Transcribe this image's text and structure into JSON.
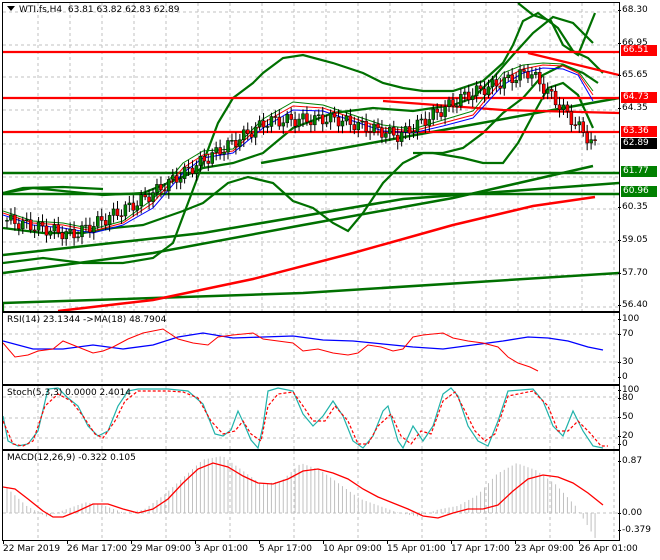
{
  "header": {
    "symbol": "WTI.fs,H4",
    "ohlc": "63.81 63.82 62.83 62.89"
  },
  "colors": {
    "bullish_candle": "#008000",
    "bearish_candle": "#ff0000",
    "support_line": "#007000",
    "resistance_line": "#ff0000",
    "rsi": "#ff0000",
    "rsi_ma": "#0000ff",
    "stoch_main": "#20b2aa",
    "stoch_signal": "#ff0000",
    "macd_hist": "#c0c0c0",
    "macd_signal": "#ff0000",
    "current_price_tag": "#000000",
    "grid": "#c0c0c0"
  },
  "price_axis": {
    "ticks": [
      "68.30",
      "66.95",
      "65.65",
      "64.35",
      "63.05",
      "61.70",
      "60.35",
      "59.05",
      "57.70",
      "56.40"
    ],
    "tags": [
      {
        "label": "66.51",
        "color": "#ff0000"
      },
      {
        "label": "64.73",
        "color": "#ff0000"
      },
      {
        "label": "63.36",
        "color": "#ff0000"
      },
      {
        "label": "62.89",
        "color": "#000000"
      },
      {
        "label": "61.77",
        "color": "#008000"
      },
      {
        "label": "60.96",
        "color": "#008000"
      }
    ]
  },
  "rsi_pane": {
    "label": "RSI(14) 23.1344  ->MA(18) 48.7904",
    "ticks": [
      "100",
      "70",
      "30",
      "0"
    ]
  },
  "stoch_pane": {
    "label": "Stoch(5,3,3) 0.0000 2.4014",
    "ticks": [
      "100",
      "80",
      "50",
      "20",
      "0"
    ]
  },
  "macd_pane": {
    "label": "MACD(12,26,9) -0.322 0.105",
    "ticks": [
      "0.87",
      "0.00",
      "-0.379"
    ]
  },
  "time_axis": {
    "labels": [
      "22 Mar 2019",
      "26 Mar 17:00",
      "29 Mar 09:00",
      "3 Apr 01:00",
      "5 Apr 17:00",
      "10 Apr 09:00",
      "15 Apr 01:00",
      "17 Apr 17:00",
      "23 Apr 09:00",
      "26 Apr 01:00"
    ]
  },
  "chart_data": [
    {
      "type": "candlestick",
      "title": "WTI.fs,H4",
      "last_bar": {
        "open": 63.81,
        "high": 63.82,
        "low": 62.83,
        "close": 62.89
      },
      "x": [
        "22 Mar 2019",
        "26 Mar 17:00",
        "29 Mar 09:00",
        "3 Apr 01:00",
        "5 Apr 17:00",
        "10 Apr 09:00",
        "15 Apr 01:00",
        "17 Apr 17:00",
        "23 Apr 09:00",
        "26 Apr 01:00"
      ],
      "close_approx": [
        59.9,
        59.3,
        60.6,
        62.3,
        63.9,
        64.0,
        63.3,
        64.9,
        65.9,
        62.9
      ],
      "ylim": [
        56.4,
        68.3
      ],
      "horizontal_levels": [
        {
          "price": 66.51,
          "type": "resistance"
        },
        {
          "price": 64.73,
          "type": "resistance"
        },
        {
          "price": 63.36,
          "type": "resistance"
        },
        {
          "price": 61.77,
          "type": "support"
        },
        {
          "price": 60.96,
          "type": "support"
        }
      ],
      "current_price": 62.89,
      "overlays": [
        "Bollinger Bands (green)",
        "Moving averages (red/blue/green)",
        "Trend lines (green/red)",
        "Long-term MA (red)"
      ],
      "yticks": [
        68.3,
        66.95,
        65.65,
        64.35,
        63.05,
        61.7,
        60.35,
        59.05,
        57.7,
        56.4
      ]
    },
    {
      "type": "line",
      "title": "RSI(14)",
      "series": [
        {
          "name": "RSI(14)",
          "last": 23.1344,
          "values_approx": [
            45,
            32,
            40,
            45,
            55,
            62,
            52,
            58,
            50,
            40,
            38,
            54,
            66,
            48,
            23
          ]
        },
        {
          "name": "MA(18)",
          "last": 48.7904,
          "values_approx": [
            45,
            40,
            42,
            45,
            52,
            56,
            54,
            56,
            52,
            46,
            42,
            44,
            54,
            56,
            49
          ]
        }
      ],
      "ylim": [
        0,
        100
      ],
      "yticks": [
        100,
        70,
        30,
        0
      ]
    },
    {
      "type": "line",
      "title": "Stoch(5,3,3)",
      "series": [
        {
          "name": "%K",
          "last": 0.0,
          "values_approx": [
            10,
            95,
            60,
            5,
            95,
            92,
            35,
            92,
            20,
            60,
            5,
            95,
            5,
            95,
            30,
            0
          ]
        },
        {
          "name": "%D",
          "last": 2.4014,
          "values_approx": [
            20,
            85,
            70,
            15,
            85,
            92,
            40,
            88,
            30,
            55,
            15,
            85,
            15,
            92,
            40,
            2
          ]
        }
      ],
      "ylim": [
        0,
        100
      ],
      "yticks": [
        100,
        80,
        50,
        20,
        0
      ]
    },
    {
      "type": "bar",
      "title": "MACD(12,26,9)",
      "series": [
        {
          "name": "MACD",
          "last": -0.322
        },
        {
          "name": "Signal",
          "last": 0.105,
          "values_approx": [
            0.38,
            -0.05,
            0.15,
            0.0,
            0.8,
            0.4,
            0.7,
            0.2,
            -0.08,
            0.05,
            0.55,
            0.1
          ]
        }
      ],
      "ylim": [
        -0.379,
        0.87
      ],
      "yticks": [
        0.87,
        0.0,
        -0.379
      ]
    }
  ]
}
